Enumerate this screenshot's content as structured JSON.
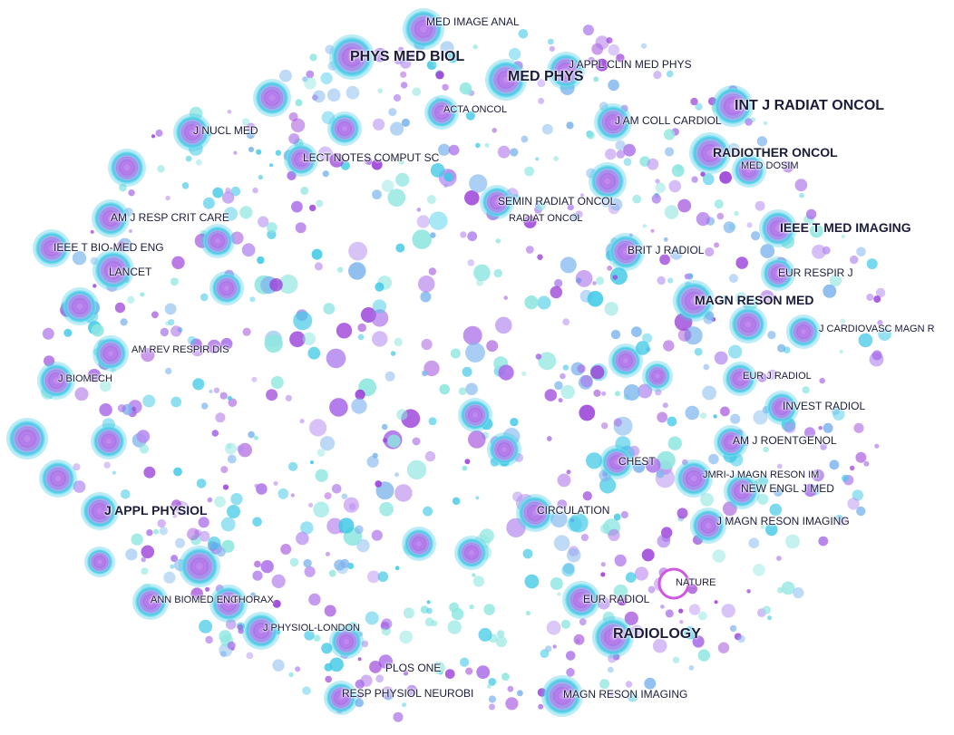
{
  "colors": {
    "outer_ring": "#3fc9e6",
    "inner_core": "#a86be8",
    "dot_violet": "#b58cf0",
    "dot_purple": "#9a3fd8",
    "dot_cyan": "#8ee6e0",
    "dot_blue": "#7fb6ee",
    "nature_ring": "#d057e0"
  },
  "labels": {
    "med_image_anal": "MED IMAGE ANAL",
    "phys_med_biol": "PHYS MED BIOL",
    "j_appl_clin_med_phys": "J APPL CLIN MED PHYS",
    "med_phys": "MED PHYS",
    "int_j_radiat_oncol": "INT J RADIAT ONCOL",
    "acta_oncol": "ACTA ONCOL",
    "j_nucl_med": "J NUCL MED",
    "j_am_coll_cardiol": "J AM COLL CARDIOL",
    "lect_notes_comput_sc": "LECT NOTES COMPUT SC",
    "radiother_oncol": "RADIOTHER ONCOL",
    "med_dosim": "MED DOSIM",
    "semin_radiat_oncol": "SEMIN RADIAT ONCOL",
    "radiat_oncol": "RADIAT ONCOL",
    "am_j_resp_crit_care": "AM J RESP CRIT CARE",
    "ieee_t_med_imaging": "IEEE T MED IMAGING",
    "ieee_t_bio_med_eng": "IEEE T BIO-MED ENG",
    "brit_j_radiol": "BRIT J RADIOL",
    "lancet": "LANCET",
    "eur_respir_j": "EUR RESPIR J",
    "magn_reson_med": "MAGN RESON MED",
    "j_cardiovasc_magn_r": "J CARDIOVASC MAGN R",
    "am_rev_respir_dis": "AM REV RESPIR DIS",
    "j_biomech": "J BIOMECH",
    "eur_j_radiol": "EUR J RADIOL",
    "invest_radiol": "INVEST RADIOL",
    "am_j_roentgenol": "AM J ROENTGENOL",
    "chest": "CHEST",
    "jmri_j_magn_reson_im": "JMRI-J MAGN RESON IM",
    "new_engl_j_med": "NEW ENGL J MED",
    "j_appl_physiol": "J APPL PHYSIOL",
    "circulation": "CIRCULATION",
    "j_magn_reson_imaging": "J MAGN RESON IMAGING",
    "nature": "NATURE",
    "ann_biomed_eng": "ANN BIOMED ENG",
    "thorax": "THORAX",
    "eur_radiol": "EUR RADIOL",
    "j_physiol_london": "J PHYSIOL-LONDON",
    "radiology": "RADIOLOGY",
    "plos_one": "PLOS ONE",
    "resp_physiol_neurobi": "RESP PHYSIOL NEUROBI",
    "magn_reson_imaging": "MAGN RESON IMAGING"
  }
}
